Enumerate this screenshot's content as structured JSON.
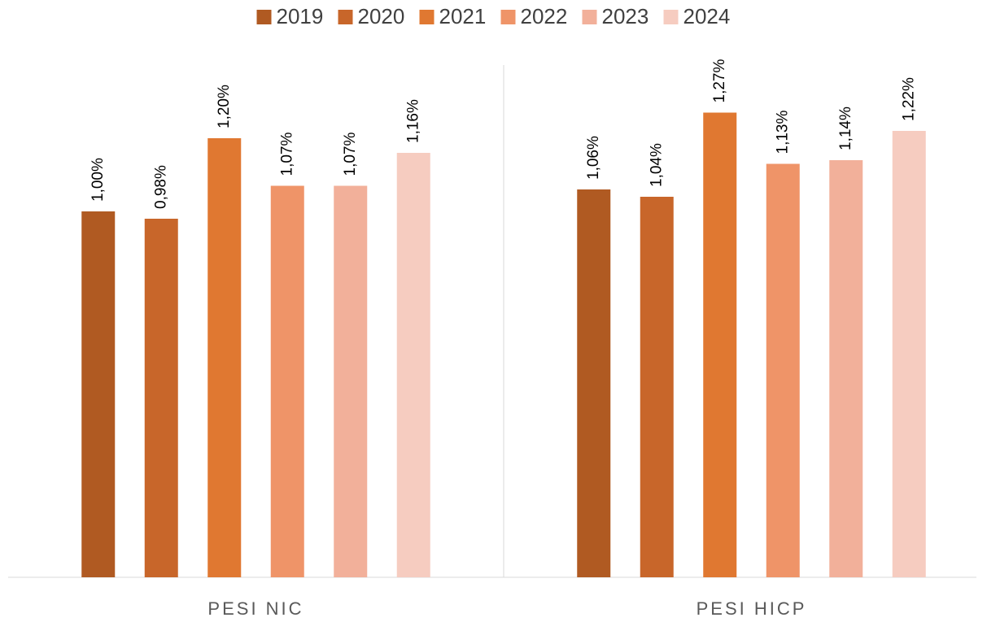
{
  "chart_data": {
    "type": "bar",
    "categories": [
      "PESI NIC",
      "PESI HICP"
    ],
    "series": [
      {
        "name": "2019",
        "color": "#b05a22",
        "values": [
          1.0,
          1.06
        ],
        "value_labels": [
          "1,00%",
          "1,06%"
        ]
      },
      {
        "name": "2020",
        "color": "#c8662a",
        "values": [
          0.98,
          1.04
        ],
        "value_labels": [
          "0,98%",
          "1,04%"
        ]
      },
      {
        "name": "2021",
        "color": "#e07831",
        "values": [
          1.2,
          1.27
        ],
        "value_labels": [
          "1,20%",
          "1,27%"
        ]
      },
      {
        "name": "2022",
        "color": "#ef9468",
        "values": [
          1.07,
          1.13
        ],
        "value_labels": [
          "1,07%",
          "1,13%"
        ]
      },
      {
        "name": "2023",
        "color": "#f2b09a",
        "values": [
          1.07,
          1.14
        ],
        "value_labels": [
          "1,07%",
          "1,14%"
        ]
      },
      {
        "name": "2024",
        "color": "#f6ccc0",
        "values": [
          1.16,
          1.22
        ],
        "value_labels": [
          "1,16%",
          "1,22%"
        ]
      }
    ],
    "ylim": [
      0,
      1.4
    ],
    "legend": "top"
  }
}
